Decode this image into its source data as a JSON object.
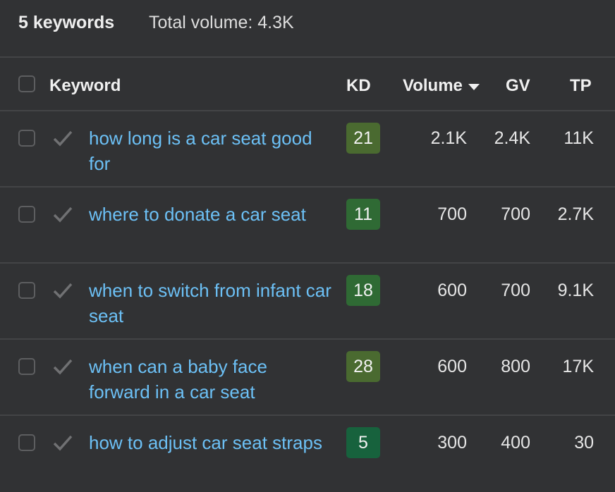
{
  "summary": {
    "count": "5 keywords",
    "total": "Total volume: 4.3K"
  },
  "columns": {
    "keyword": "Keyword",
    "kd": "KD",
    "volume": "Volume",
    "gv": "GV",
    "tp": "TP",
    "sort_icon": "caret-down-icon"
  },
  "rows": [
    {
      "keyword": "how long is a car seat good for",
      "kd": "21",
      "kd_color": "#4a6a30",
      "volume": "2.1K",
      "gv": "2.4K",
      "tp": "11K"
    },
    {
      "keyword": "where to donate a car seat",
      "kd": "11",
      "kd_color": "#2f6a34",
      "volume": "700",
      "gv": "700",
      "tp": "2.7K"
    },
    {
      "keyword": "when to switch from infant car seat",
      "kd": "18",
      "kd_color": "#2f6a34",
      "volume": "600",
      "gv": "700",
      "tp": "9.1K"
    },
    {
      "keyword": "when can a baby face forward in a car seat",
      "kd": "28",
      "kd_color": "#4a6a30",
      "volume": "600",
      "gv": "800",
      "tp": "17K"
    },
    {
      "keyword": "how to adjust car seat straps",
      "kd": "5",
      "kd_color": "#17623d",
      "volume": "300",
      "gv": "400",
      "tp": "30"
    }
  ]
}
